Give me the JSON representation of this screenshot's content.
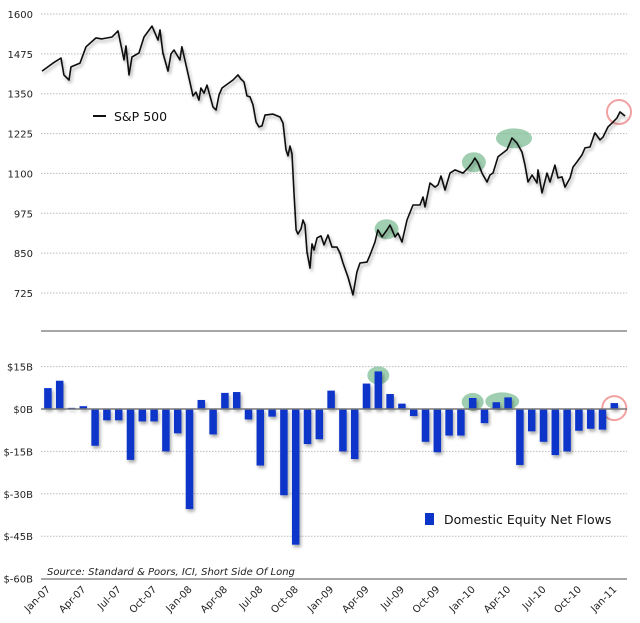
{
  "chart_data": [
    {
      "type": "line",
      "title": "",
      "legend": "S&P 500",
      "legend_placement": "top-left",
      "ylim": [
        725,
        1600
      ],
      "yticks": [
        "1600",
        "1475",
        "1350",
        "1225",
        "1100",
        "975",
        "850",
        "725"
      ],
      "ytick_values": [
        1600,
        1475,
        1350,
        1225,
        1100,
        975,
        850,
        725
      ],
      "x_unit": "months since Jan-07",
      "grid": true,
      "line_color": "#111111",
      "points": [
        [
          0,
          1421
        ],
        [
          0.93,
          1446
        ],
        [
          1.61,
          1462
        ],
        [
          1.86,
          1409
        ],
        [
          2.29,
          1393
        ],
        [
          2.46,
          1434
        ],
        [
          3.22,
          1446
        ],
        [
          3.73,
          1497
        ],
        [
          4.58,
          1525
        ],
        [
          5.08,
          1522
        ],
        [
          5.93,
          1528
        ],
        [
          6.44,
          1547
        ],
        [
          6.95,
          1456
        ],
        [
          7.12,
          1500
        ],
        [
          7.37,
          1409
        ],
        [
          7.63,
          1465
        ],
        [
          8.22,
          1478
        ],
        [
          8.64,
          1528
        ],
        [
          9.32,
          1562
        ],
        [
          9.83,
          1518
        ],
        [
          10.0,
          1550
        ],
        [
          10.25,
          1478
        ],
        [
          10.68,
          1421
        ],
        [
          10.93,
          1475
        ],
        [
          11.19,
          1487
        ],
        [
          11.69,
          1456
        ],
        [
          11.86,
          1497
        ],
        [
          12.46,
          1399
        ],
        [
          12.8,
          1343
        ],
        [
          13.05,
          1355
        ],
        [
          13.3,
          1330
        ],
        [
          13.47,
          1368
        ],
        [
          13.73,
          1352
        ],
        [
          13.98,
          1377
        ],
        [
          14.49,
          1308
        ],
        [
          14.75,
          1299
        ],
        [
          15.0,
          1346
        ],
        [
          15.25,
          1368
        ],
        [
          16.19,
          1393
        ],
        [
          16.61,
          1409
        ],
        [
          16.86,
          1396
        ],
        [
          17.12,
          1387
        ],
        [
          17.37,
          1343
        ],
        [
          17.63,
          1340
        ],
        [
          17.88,
          1315
        ],
        [
          18.14,
          1261
        ],
        [
          18.39,
          1246
        ],
        [
          18.64,
          1249
        ],
        [
          18.9,
          1283
        ],
        [
          19.58,
          1286
        ],
        [
          20.17,
          1277
        ],
        [
          20.42,
          1258
        ],
        [
          20.68,
          1174
        ],
        [
          20.85,
          1155
        ],
        [
          21.02,
          1186
        ],
        [
          21.19,
          1161
        ],
        [
          21.36,
          1039
        ],
        [
          21.53,
          923
        ],
        [
          21.69,
          910
        ],
        [
          21.95,
          926
        ],
        [
          22.12,
          954
        ],
        [
          22.29,
          938
        ],
        [
          22.46,
          854
        ],
        [
          22.71,
          803
        ],
        [
          22.88,
          879
        ],
        [
          23.05,
          860
        ],
        [
          23.31,
          898
        ],
        [
          23.64,
          904
        ],
        [
          23.9,
          876
        ],
        [
          24.24,
          907
        ],
        [
          24.58,
          869
        ],
        [
          25.0,
          869
        ],
        [
          25.25,
          850
        ],
        [
          25.51,
          819
        ],
        [
          25.93,
          775
        ],
        [
          26.36,
          719
        ],
        [
          26.69,
          791
        ],
        [
          26.95,
          819
        ],
        [
          27.54,
          822
        ],
        [
          27.8,
          844
        ],
        [
          28.22,
          885
        ],
        [
          28.47,
          923
        ],
        [
          28.81,
          901
        ],
        [
          29.24,
          923
        ],
        [
          29.49,
          938
        ],
        [
          29.92,
          901
        ],
        [
          30.17,
          913
        ],
        [
          30.51,
          885
        ],
        [
          30.93,
          954
        ],
        [
          31.44,
          1001
        ],
        [
          32.03,
          1001
        ],
        [
          32.29,
          1026
        ],
        [
          32.46,
          995
        ],
        [
          32.88,
          1070
        ],
        [
          33.31,
          1057
        ],
        [
          33.56,
          1064
        ],
        [
          33.81,
          1092
        ],
        [
          34.15,
          1048
        ],
        [
          34.58,
          1101
        ],
        [
          35.0,
          1111
        ],
        [
          35.68,
          1101
        ],
        [
          36.1,
          1117
        ],
        [
          36.44,
          1133
        ],
        [
          36.69,
          1148
        ],
        [
          36.95,
          1133
        ],
        [
          37.29,
          1101
        ],
        [
          37.71,
          1073
        ],
        [
          37.97,
          1095
        ],
        [
          38.22,
          1101
        ],
        [
          38.64,
          1152
        ],
        [
          39.41,
          1174
        ],
        [
          39.83,
          1211
        ],
        [
          40.25,
          1195
        ],
        [
          40.68,
          1167
        ],
        [
          40.93,
          1126
        ],
        [
          41.19,
          1073
        ],
        [
          41.53,
          1095
        ],
        [
          41.95,
          1070
        ],
        [
          42.03,
          1111
        ],
        [
          42.37,
          1039
        ],
        [
          42.8,
          1101
        ],
        [
          43.05,
          1073
        ],
        [
          43.47,
          1126
        ],
        [
          43.73,
          1086
        ],
        [
          44.07,
          1089
        ],
        [
          44.32,
          1057
        ],
        [
          44.75,
          1086
        ],
        [
          45.0,
          1120
        ],
        [
          45.34,
          1136
        ],
        [
          45.76,
          1158
        ],
        [
          46.02,
          1180
        ],
        [
          46.44,
          1183
        ],
        [
          46.86,
          1227
        ],
        [
          47.29,
          1205
        ],
        [
          47.54,
          1214
        ],
        [
          47.97,
          1246
        ],
        [
          48.39,
          1261
        ],
        [
          48.73,
          1274
        ],
        [
          48.98,
          1293
        ],
        [
          49.41,
          1280
        ]
      ],
      "highlights": [
        {
          "month": 29.2,
          "value": 925,
          "color": "#7fbf95",
          "kind": "green"
        },
        {
          "month": 36.6,
          "value": 1135,
          "color": "#7fbf95",
          "kind": "green"
        },
        {
          "month": 40.0,
          "value": 1210,
          "color": "#7fbf95",
          "kind": "green"
        },
        {
          "month": 48.9,
          "value": 1280,
          "color": "#f2a0a0",
          "kind": "red"
        }
      ]
    },
    {
      "type": "bar",
      "legend": "Domestic Equity Net Flows",
      "legend_placement": "bottom-right",
      "ylim": [
        -60,
        15
      ],
      "yticks": [
        "$15B",
        "$0B",
        "$-15B",
        "$-30B",
        "$-45B",
        "$-60B"
      ],
      "ytick_values": [
        15,
        0,
        -15,
        -30,
        -45,
        -60
      ],
      "bar_color": "#0b35c9",
      "xlabel_ticks": [
        "Jan-07",
        "Apr-07",
        "Jul-07",
        "Oct-07",
        "Jan-08",
        "Apr-08",
        "Jul-08",
        "Oct-08",
        "Jan-09",
        "Apr-09",
        "Jul-09",
        "Oct-09",
        "Jan-10",
        "Apr-10",
        "Jul-10",
        "Oct-10",
        "Jan-11"
      ],
      "categories": [
        "Jan-07",
        "Feb-07",
        "Mar-07",
        "Apr-07",
        "May-07",
        "Jun-07",
        "Jul-07",
        "Aug-07",
        "Sep-07",
        "Oct-07",
        "Nov-07",
        "Dec-07",
        "Jan-08",
        "Feb-08",
        "Mar-08",
        "Apr-08",
        "May-08",
        "Jun-08",
        "Jul-08",
        "Aug-08",
        "Sep-08",
        "Oct-08",
        "Nov-08",
        "Dec-08",
        "Jan-09",
        "Feb-09",
        "Mar-09",
        "Apr-09",
        "May-09",
        "Jun-09",
        "Jul-09",
        "Aug-09",
        "Sep-09",
        "Oct-09",
        "Nov-09",
        "Dec-09",
        "Jan-10",
        "Feb-10",
        "Mar-10",
        "Apr-10",
        "May-10",
        "Jun-10",
        "Jul-10",
        "Aug-10",
        "Sep-10",
        "Oct-10",
        "Nov-10",
        "Dec-10",
        "Jan-11"
      ],
      "values": [
        7.4,
        10,
        0.4,
        1,
        -13,
        -4,
        -4,
        -18,
        -4.4,
        -4.4,
        -15,
        -8.6,
        -35.4,
        3.2,
        -9,
        5.7,
        6,
        -3.7,
        -20,
        -2.7,
        -30.5,
        -48,
        -12.4,
        -10.7,
        6.5,
        -15,
        -17.7,
        9,
        13.3,
        5.3,
        1.9,
        -2.5,
        -11.6,
        -15.3,
        -9.4,
        -9.4,
        3.9,
        -5,
        2.4,
        4.1,
        -19.8,
        -7.9,
        -11.6,
        -16.3,
        -15,
        -7.7,
        -7,
        -7.3,
        2.1
      ],
      "highlights": [
        {
          "index": 28,
          "color": "#7fbf95",
          "kind": "green"
        },
        {
          "index": 36,
          "color": "#7fbf95",
          "kind": "green"
        },
        {
          "index": 39,
          "color": "#7fbf95",
          "kind": "green-wide"
        },
        {
          "index": 48,
          "color": "#f2a0a0",
          "kind": "red"
        }
      ]
    }
  ],
  "source": "Source: Standard & Poors, ICI, Short Side Of Long"
}
